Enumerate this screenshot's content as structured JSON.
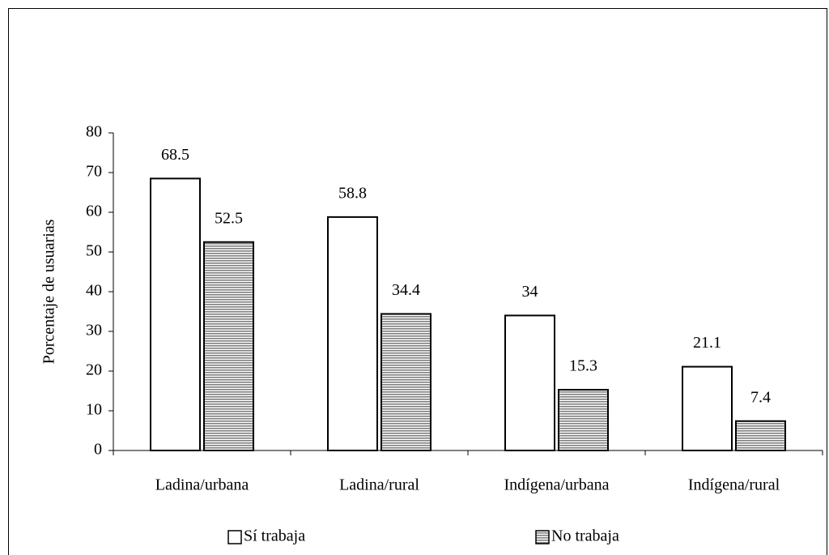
{
  "chart_data": {
    "type": "bar",
    "y_label": "Porcentaje de usuarias",
    "categories": [
      "Ladina/urbana",
      "Ladina/rural",
      "Indígena/urbana",
      "Indígena/rural"
    ],
    "series": [
      {
        "name": "Sí trabaja",
        "color": "#ffffff",
        "values": [
          68.5,
          58.8,
          34,
          21.1
        ]
      },
      {
        "name": "No trabaja",
        "color": "#808080",
        "hatched": true,
        "values": [
          52.5,
          34.4,
          15.3,
          7.4
        ]
      }
    ],
    "ylim": [
      0,
      80
    ],
    "yticks": [
      0,
      10,
      20,
      30,
      40,
      50,
      60,
      70,
      80
    ],
    "legend": "bottom"
  }
}
